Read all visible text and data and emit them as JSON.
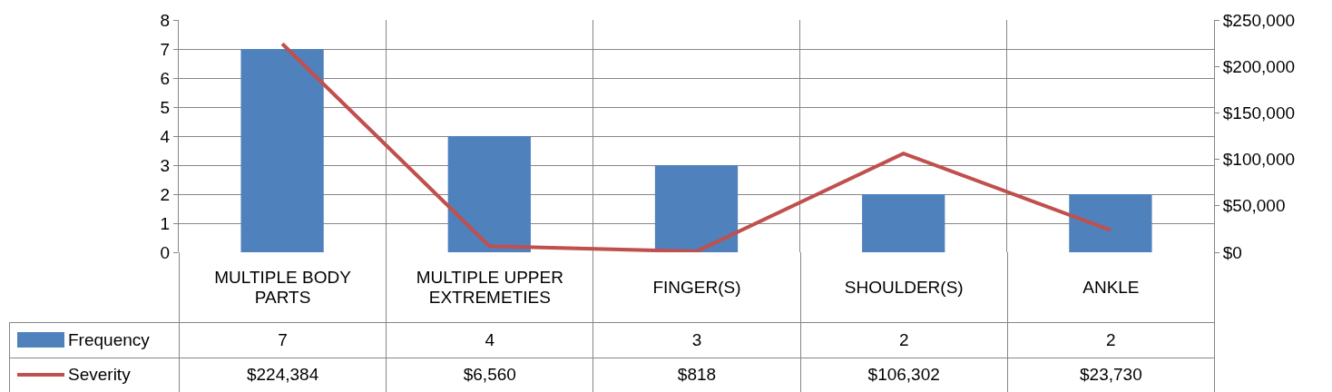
{
  "chart_data": {
    "type": "bar",
    "categories": [
      "MULTIPLE BODY PARTS",
      "MULTIPLE UPPER EXTREMETIES",
      "FINGER(S)",
      "SHOULDER(S)",
      "ANKLE"
    ],
    "series": [
      {
        "name": "Frequency",
        "color": "#4f81bd",
        "values": [
          7,
          4,
          3,
          2,
          2
        ],
        "value_labels": [
          "7",
          "4",
          "3",
          "2",
          "2"
        ]
      },
      {
        "name": "Severity",
        "type": "line",
        "axis": "y2",
        "color": "#c0504d",
        "values": [
          224384,
          6560,
          818,
          106302,
          23730
        ],
        "value_labels": [
          "$224,384",
          "$6,560",
          "$818",
          "$106,302",
          "$23,730"
        ]
      }
    ],
    "ylim": [
      0,
      8
    ],
    "yticks": [
      0,
      1,
      2,
      3,
      4,
      5,
      6,
      7,
      8
    ],
    "y2lim": [
      0,
      250000
    ],
    "y2ticks": [
      {
        "value": 0,
        "label": "$0"
      },
      {
        "value": 50000,
        "label": "$50,000"
      },
      {
        "value": 100000,
        "label": "$100,000"
      },
      {
        "value": 150000,
        "label": "$150,000"
      },
      {
        "value": 200000,
        "label": "$200,000"
      },
      {
        "value": 250000,
        "label": "$250,000"
      }
    ],
    "grid": "y",
    "legend": "bottom left",
    "marker": "none",
    "line_style": "solid"
  }
}
